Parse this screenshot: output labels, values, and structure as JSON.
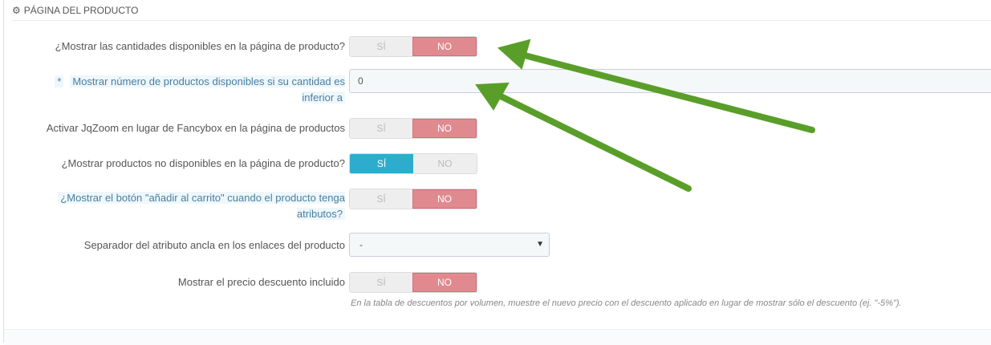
{
  "section": {
    "title": "PÁGINA DEL PRODUCTO",
    "icon": "cogs-icon"
  },
  "fields": [
    {
      "label": "¿Mostrar las cantidades disponibles en la página de producto?",
      "type": "switch",
      "yes": "SÍ",
      "no": "NO",
      "value": "NO"
    },
    {
      "label": "Mostrar número de productos disponibles si su cantidad es inferior a",
      "type": "text",
      "required": "*",
      "value": "0"
    },
    {
      "label": "Activar JqZoom en lugar de Fancybox en la página de productos",
      "type": "switch",
      "yes": "SÍ",
      "no": "NO",
      "value": "NO"
    },
    {
      "label": "¿Mostrar productos no disponibles en la página de producto?",
      "type": "switch",
      "yes": "SÍ",
      "no": "NO",
      "value": "SÍ"
    },
    {
      "label": "¿Mostrar el botón \"añadir al carrito\" cuando el producto tenga atributos?",
      "type": "switch",
      "yes": "SÍ",
      "no": "NO",
      "value": "NO"
    },
    {
      "label": "Separador del atributo ancla en los enlaces del producto",
      "type": "select",
      "value": "-"
    },
    {
      "label": "Mostrar el precio descuento incluido",
      "type": "switch",
      "yes": "SÍ",
      "no": "NO",
      "value": "NO",
      "help": "En la tabla de descuentos por volumen, muestre el nuevo precio con el descuento aplicado en lugar de mostrar sólo el descuento (ej. \"-5%\")."
    }
  ],
  "colors": {
    "no": "#e08a90",
    "yes": "#2eacce",
    "arrow": "#5a9e2a"
  }
}
